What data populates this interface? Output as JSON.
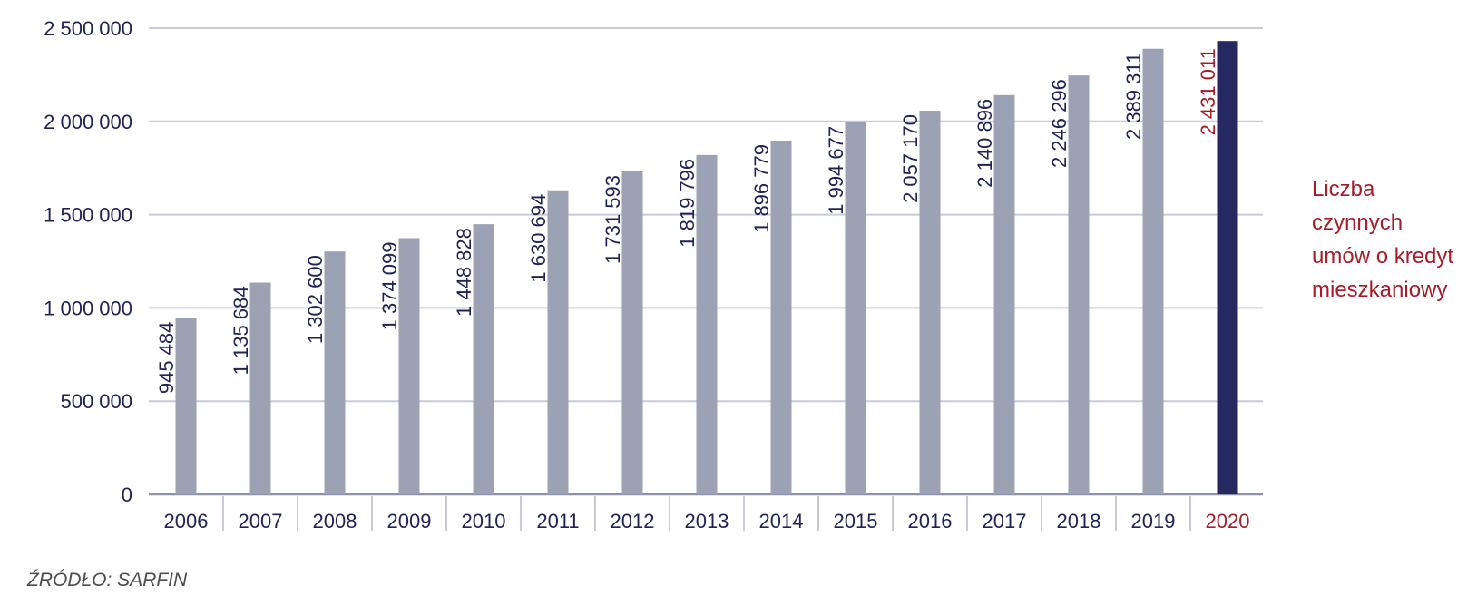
{
  "chart_data": {
    "type": "bar",
    "categories": [
      "2006",
      "2007",
      "2008",
      "2009",
      "2010",
      "2011",
      "2012",
      "2013",
      "2014",
      "2015",
      "2016",
      "2017",
      "2018",
      "2019",
      "2020"
    ],
    "values": [
      945484,
      1135684,
      1302600,
      1374099,
      1448828,
      1630694,
      1731593,
      1819796,
      1896779,
      1994677,
      2057170,
      2140896,
      2246296,
      2389311,
      2431011
    ],
    "value_labels": [
      "945 484",
      "1 135 684",
      "1 302 600",
      "1 374 099",
      "1 448 828",
      "1 630 694",
      "1 731 593",
      "1 819 796",
      "1 896 779",
      "1 994 677",
      "2 057 170",
      "2 140 896",
      "2 246 296",
      "2 389 311",
      "2 431 011"
    ],
    "y_ticks": [
      0,
      500000,
      1000000,
      1500000,
      2000000,
      2500000
    ],
    "y_tick_labels": [
      "0",
      "500 000",
      "1 000 000",
      "1 500 000",
      "2 000 000",
      "2 500 000"
    ],
    "ylim": [
      0,
      2500000
    ],
    "grid": true,
    "highlight_index": 14,
    "colors": {
      "bar": "#9ca1b3",
      "highlight_bar": "#26295f",
      "text": "#1f2455",
      "highlight_text": "#a61d2a",
      "grid": "#c8cbd9",
      "axis": "#8e93a9"
    },
    "legend": {
      "position": "right",
      "lines": [
        "Liczba",
        "czynnych",
        "umów o kredyt",
        "mieszkaniowy"
      ]
    }
  },
  "source": "ŹRÓDŁO: SARFIN"
}
